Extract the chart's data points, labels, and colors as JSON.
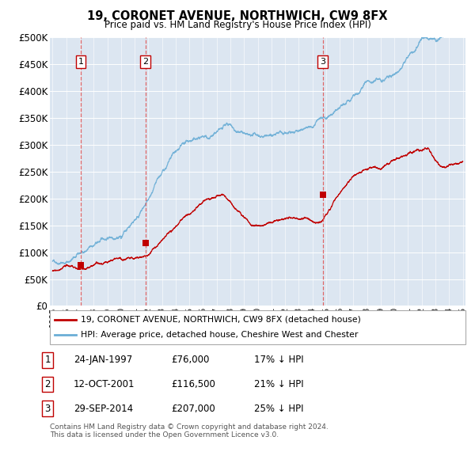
{
  "title": "19, CORONET AVENUE, NORTHWICH, CW9 8FX",
  "subtitle": "Price paid vs. HM Land Registry's House Price Index (HPI)",
  "sale_dates_num": [
    1997.07,
    2001.79,
    2014.75
  ],
  "sale_prices": [
    76000,
    116500,
    207000
  ],
  "sale_labels": [
    "1",
    "2",
    "3"
  ],
  "sale_annotations": [
    {
      "num": "1",
      "date": "24-JAN-1997",
      "price": "£76,000",
      "note": "17% ↓ HPI"
    },
    {
      "num": "2",
      "date": "12-OCT-2001",
      "price": "£116,500",
      "note": "21% ↓ HPI"
    },
    {
      "num": "3",
      "date": "29-SEP-2014",
      "price": "£207,000",
      "note": "25% ↓ HPI"
    }
  ],
  "hpi_line_color": "#6baed6",
  "sale_line_color": "#c00000",
  "dashed_line_color": "#e05050",
  "plot_bg_color": "#dce6f1",
  "grid_color": "#ffffff",
  "legend_label_sale": "19, CORONET AVENUE, NORTHWICH, CW9 8FX (detached house)",
  "legend_label_hpi": "HPI: Average price, detached house, Cheshire West and Chester",
  "footer": "Contains HM Land Registry data © Crown copyright and database right 2024.\nThis data is licensed under the Open Government Licence v3.0.",
  "ylim": [
    0,
    500000
  ],
  "yticks": [
    0,
    50000,
    100000,
    150000,
    200000,
    250000,
    300000,
    350000,
    400000,
    450000,
    500000
  ],
  "xlim": [
    1994.8,
    2025.2
  ]
}
